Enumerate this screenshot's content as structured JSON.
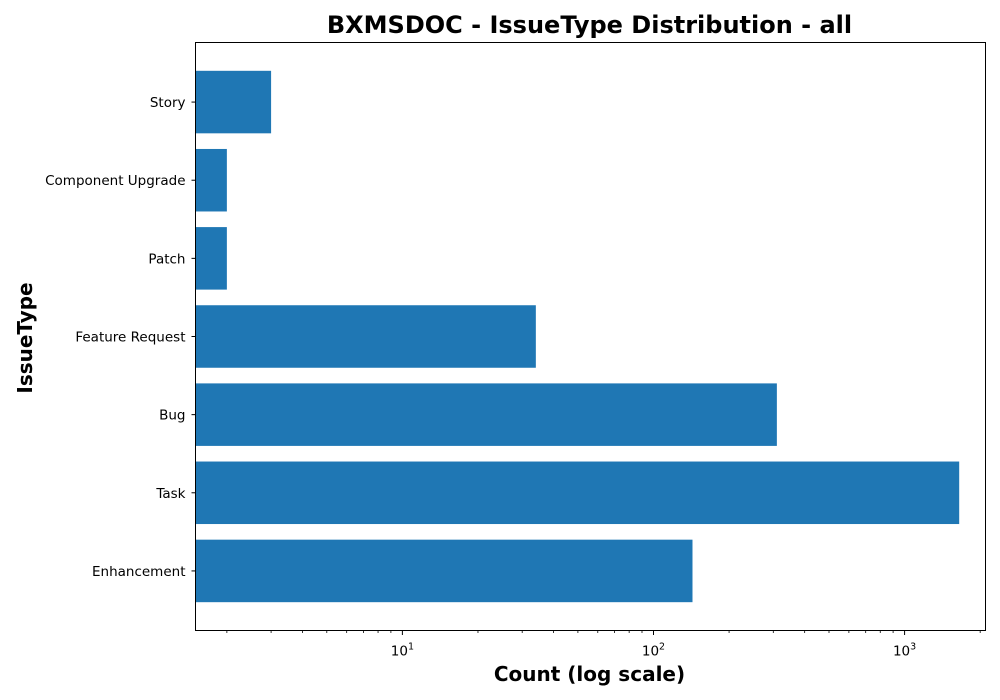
{
  "chart_data": {
    "type": "bar",
    "orientation": "horizontal",
    "title": "BXMSDOC - IssueType Distribution - all",
    "xlabel": "Count (log scale)",
    "ylabel": "IssueType",
    "x_scale": "log",
    "xlim": [
      1.5,
      2100
    ],
    "x_ticks": [
      {
        "value": 10,
        "base": "10",
        "exp": "1"
      },
      {
        "value": 100,
        "base": "10",
        "exp": "2"
      },
      {
        "value": 1000,
        "base": "10",
        "exp": "3"
      }
    ],
    "grid": false,
    "legend": "none",
    "bar_color": "#1f77b4",
    "categories": [
      "Enhancement",
      "Task",
      "Bug",
      "Feature Request",
      "Patch",
      "Component Upgrade",
      "Story"
    ],
    "values": [
      143,
      1650,
      310,
      34,
      2,
      2,
      3
    ]
  }
}
